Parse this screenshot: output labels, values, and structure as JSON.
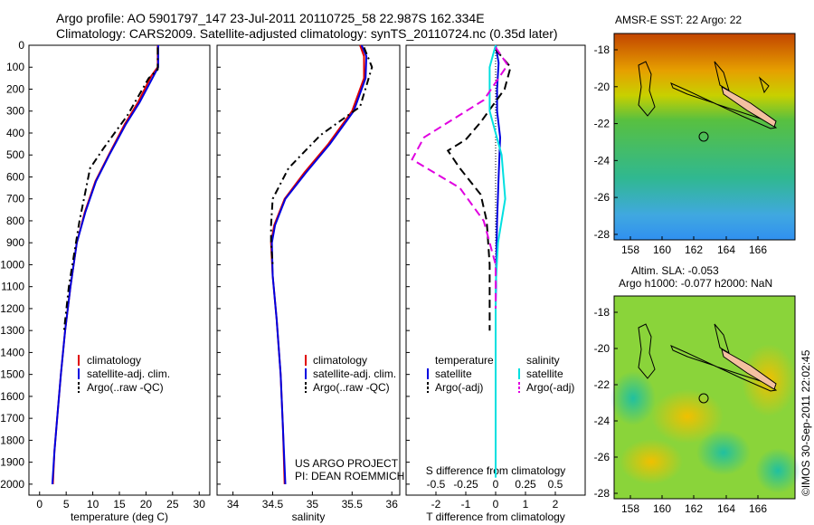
{
  "header": {
    "line1": "Argo profile: AO 5901797_147 23-Jul-2011 20110725_58 22.987S 162.334E",
    "line2": "Climatology: CARS2009. Satellite-adjusted climatology: synTS_20110724.nc (0.35d later)"
  },
  "colors": {
    "clim": "#e00000",
    "sat": "#0000e0",
    "argo": "#000000",
    "s_sat": "#00e0e0",
    "s_argo": "#e000e0"
  },
  "chart_data": [
    {
      "type": "line",
      "name": "temperature-profile",
      "xlabel": "temperature (deg C)",
      "xlim": [
        -2,
        32
      ],
      "ylim": [
        0,
        2050
      ],
      "x_ticks": [
        0,
        5,
        10,
        15,
        20,
        25,
        30
      ],
      "y_ticks": [
        0,
        100,
        200,
        300,
        400,
        500,
        600,
        700,
        800,
        900,
        1000,
        1100,
        1200,
        1300,
        1400,
        1500,
        1600,
        1700,
        1800,
        1900,
        2000
      ],
      "legend": [
        "climatology",
        "satellite-adj. clim.",
        "Argo(..raw -QC)"
      ],
      "series": [
        {
          "name": "climatology",
          "color": "clim",
          "dash": "",
          "points": [
            [
              22.2,
              0
            ],
            [
              22.2,
              100
            ],
            [
              21,
              140
            ],
            [
              18.5,
              260
            ],
            [
              16,
              360
            ],
            [
              13,
              500
            ],
            [
              10.5,
              620
            ],
            [
              8.5,
              760
            ],
            [
              7,
              900
            ],
            [
              5.8,
              1100
            ],
            [
              4.8,
              1300
            ],
            [
              4,
              1500
            ],
            [
              3.3,
              1700
            ],
            [
              2.8,
              1850
            ],
            [
              2.5,
              2000
            ]
          ]
        },
        {
          "name": "satellite-adj. clim.",
          "color": "sat",
          "dash": "",
          "points": [
            [
              22.3,
              0
            ],
            [
              22.3,
              100
            ],
            [
              21.2,
              150
            ],
            [
              18.8,
              260
            ],
            [
              16.2,
              360
            ],
            [
              13.1,
              500
            ],
            [
              10.6,
              620
            ],
            [
              8.6,
              760
            ],
            [
              7,
              900
            ],
            [
              5.8,
              1100
            ],
            [
              4.8,
              1300
            ],
            [
              4,
              1500
            ],
            [
              3.3,
              1700
            ],
            [
              2.8,
              1850
            ],
            [
              2.4,
              2000
            ]
          ]
        },
        {
          "name": "Argo(..raw -QC)",
          "color": "argo",
          "dash": "8,4,2,4",
          "points": [
            [
              22.2,
              10
            ],
            [
              22.2,
              110
            ],
            [
              20.5,
              150
            ],
            [
              16.5,
              320
            ],
            [
              12,
              470
            ],
            [
              9.5,
              560
            ],
            [
              8.5,
              680
            ],
            [
              7.5,
              800
            ],
            [
              6.5,
              950
            ],
            [
              5.5,
              1100
            ],
            [
              4.6,
              1300
            ]
          ]
        }
      ]
    },
    {
      "type": "line",
      "name": "salinity-profile",
      "xlabel": "salinity",
      "xlim": [
        33.8,
        36.1
      ],
      "ylim": [
        0,
        2050
      ],
      "x_ticks": [
        34,
        34.5,
        35,
        35.5,
        36
      ],
      "legend": [
        "climatology",
        "satellite-adj. clim.",
        "Argo(..raw -QC)"
      ],
      "credit": [
        "US ARGO PROJECT",
        "PI: DEAN ROEMMICH"
      ],
      "series": [
        {
          "name": "climatology",
          "color": "clim",
          "dash": "",
          "points": [
            [
              35.6,
              0
            ],
            [
              35.65,
              50
            ],
            [
              35.65,
              150
            ],
            [
              35.5,
              300
            ],
            [
              35.2,
              450
            ],
            [
              34.9,
              580
            ],
            [
              34.65,
              700
            ],
            [
              34.52,
              820
            ],
            [
              34.48,
              900
            ],
            [
              34.5,
              1050
            ],
            [
              34.55,
              1250
            ],
            [
              34.6,
              1500
            ],
            [
              34.63,
              1750
            ],
            [
              34.65,
              2000
            ]
          ]
        },
        {
          "name": "satellite-adj. clim.",
          "color": "sat",
          "dash": "",
          "points": [
            [
              35.62,
              0
            ],
            [
              35.68,
              50
            ],
            [
              35.67,
              150
            ],
            [
              35.52,
              300
            ],
            [
              35.22,
              450
            ],
            [
              34.92,
              580
            ],
            [
              34.66,
              700
            ],
            [
              34.53,
              820
            ],
            [
              34.49,
              900
            ],
            [
              34.5,
              1050
            ],
            [
              34.55,
              1250
            ],
            [
              34.6,
              1500
            ],
            [
              34.63,
              1750
            ],
            [
              34.66,
              2000
            ]
          ]
        },
        {
          "name": "Argo(..raw -QC)",
          "color": "argo",
          "dash": "8,4,2,4",
          "points": [
            [
              35.65,
              10
            ],
            [
              35.75,
              100
            ],
            [
              35.6,
              280
            ],
            [
              35.1,
              410
            ],
            [
              34.7,
              560
            ],
            [
              34.5,
              700
            ],
            [
              34.48,
              820
            ],
            [
              34.48,
              900
            ],
            [
              34.5,
              1000
            ]
          ]
        }
      ]
    },
    {
      "type": "line",
      "name": "difference-profile",
      "xlabel": "T difference from climatology",
      "xlabel_top": "S difference from climatology",
      "ylim": [
        0,
        2050
      ],
      "x_ticks_bottom": [
        [
          "-2",
          -2
        ],
        [
          "-1",
          -1
        ],
        [
          "0",
          0
        ],
        [
          "1",
          1
        ],
        [
          "2",
          2
        ]
      ],
      "x_ticks_top": [
        [
          "-0.5",
          -0.5
        ],
        [
          "-0.25",
          -0.25
        ],
        [
          "0",
          0
        ],
        [
          "0.25",
          0.25
        ],
        [
          "0.5",
          0.5
        ]
      ],
      "legend_headers": [
        "temperature",
        "salinity"
      ],
      "legend": [
        "satellite",
        "Argo(-adj)",
        "satellite",
        "Argo(-adj)"
      ],
      "series": [
        {
          "name": "T satellite",
          "color": "sat",
          "dash": "",
          "points": [
            [
              0,
              0
            ],
            [
              0.1,
              80
            ],
            [
              0.05,
              200
            ],
            [
              0.05,
              300
            ],
            [
              0.15,
              420
            ],
            [
              0.1,
              600
            ],
            [
              0.05,
              800
            ],
            [
              0.02,
              1000
            ],
            [
              0,
              1200
            ],
            [
              0,
              1500
            ],
            [
              0,
              1800
            ],
            [
              0,
              1960
            ]
          ]
        },
        {
          "name": "T Argo",
          "color": "argo",
          "dash": "9,5",
          "points": [
            [
              0,
              20
            ],
            [
              0.5,
              100
            ],
            [
              0.3,
              200
            ],
            [
              -0.5,
              350
            ],
            [
              -1,
              430
            ],
            [
              -1.6,
              480
            ],
            [
              -1.2,
              560
            ],
            [
              -0.5,
              680
            ],
            [
              -0.3,
              800
            ],
            [
              -0.2,
              1000
            ],
            [
              -0.2,
              1300
            ]
          ]
        },
        {
          "name": "S satellite",
          "color": "s_sat",
          "dash": "",
          "points": [
            [
              0,
              0
            ],
            [
              -0.05,
              100
            ],
            [
              -0.05,
              300
            ],
            [
              0.05,
              500
            ],
            [
              0.08,
              700
            ],
            [
              0.02,
              900
            ],
            [
              0,
              1100
            ],
            [
              0,
              1500
            ],
            [
              0,
              1970
            ]
          ]
        },
        {
          "name": "S Argo",
          "color": "s_argo",
          "dash": "9,5",
          "points": [
            [
              0,
              10
            ],
            [
              0.1,
              90
            ],
            [
              -0.1,
              250
            ],
            [
              -0.6,
              420
            ],
            [
              -0.7,
              520
            ],
            [
              -0.3,
              650
            ],
            [
              -0.1,
              800
            ],
            [
              0,
              1000
            ],
            [
              0,
              1200
            ]
          ]
        }
      ]
    }
  ],
  "maps": [
    {
      "title": "AMSR-E SST: 22 Argo: 22",
      "x_ticks": [
        "158",
        "160",
        "162",
        "164",
        "166"
      ],
      "y_ticks": [
        "-18",
        "-20",
        "-22",
        "-24",
        "-26",
        "-28"
      ]
    },
    {
      "title_line1": "Altim. SLA: -0.053",
      "title_line2": "Argo h1000: -0.077 h2000: NaN",
      "x_ticks": [
        "158",
        "160",
        "162",
        "164",
        "166"
      ],
      "y_ticks": [
        "-18",
        "-20",
        "-22",
        "-24",
        "-26",
        "-28"
      ]
    }
  ],
  "stamp": "©IMOS 30-Sep-2011 22:02:45"
}
